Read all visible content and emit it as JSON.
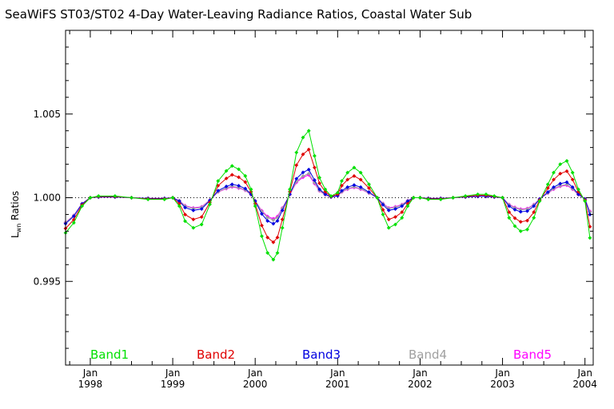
{
  "chart_data": {
    "type": "line",
    "title": "SeaWiFS ST03/ST02 4-Day Water-Leaving Radiance Ratios, Coastal Water Sub",
    "ylabel_main": "L",
    "ylabel_sub": "wn",
    "ylabel_rest": " Ratios",
    "xlabel": "",
    "x_unit": "year",
    "xlim": [
      1997.7,
      2004.1
    ],
    "ylim": [
      0.99,
      1.01
    ],
    "yticks": [
      {
        "value": 0.995,
        "label": "0.995"
      },
      {
        "value": 1.0,
        "label": "1.000"
      },
      {
        "value": 1.005,
        "label": "1.005"
      }
    ],
    "xticks": [
      {
        "value": 1998,
        "top": "Jan",
        "bottom": "1998"
      },
      {
        "value": 1999,
        "top": "Jan",
        "bottom": "1999"
      },
      {
        "value": 2000,
        "top": "Jan",
        "bottom": "2000"
      },
      {
        "value": 2001,
        "top": "Jan",
        "bottom": "2001"
      },
      {
        "value": 2002,
        "top": "Jan",
        "bottom": "2002"
      },
      {
        "value": 2003,
        "top": "Jan",
        "bottom": "2003"
      },
      {
        "value": 2004,
        "top": "Jan",
        "bottom": "2004"
      }
    ],
    "reference_line": {
      "y": 1.0,
      "style": "dotted"
    },
    "legend_placement": "bottom, inside plot",
    "series": [
      {
        "name": "Band1",
        "color": "#00e000",
        "amplitude": 1.0
      },
      {
        "name": "Band2",
        "color": "#e00000",
        "amplitude": 0.72
      },
      {
        "name": "Band3",
        "color": "#0000e0",
        "amplitude": 0.42
      },
      {
        "name": "Band4",
        "color": "#a0a0a0",
        "amplitude": 0.36
      },
      {
        "name": "Band5",
        "color": "#ff00ff",
        "amplitude": 0.34
      }
    ],
    "base_curve_x": [
      1997.7,
      1997.8,
      1997.9,
      1998.0,
      1998.1,
      1998.3,
      1998.5,
      1998.7,
      1998.9,
      1999.0,
      1999.08,
      1999.15,
      1999.25,
      1999.35,
      1999.45,
      1999.55,
      1999.65,
      1999.72,
      1999.8,
      1999.88,
      1999.95,
      2000.0,
      2000.08,
      2000.15,
      2000.22,
      2000.27,
      2000.33,
      2000.42,
      2000.5,
      2000.58,
      2000.65,
      2000.72,
      2000.78,
      2000.85,
      2000.92,
      2001.0,
      2001.05,
      2001.12,
      2001.2,
      2001.28,
      2001.38,
      2001.48,
      2001.55,
      2001.62,
      2001.7,
      2001.78,
      2001.85,
      2001.92,
      2002.0,
      2002.1,
      2002.25,
      2002.4,
      2002.55,
      2002.7,
      2002.8,
      2002.9,
      2003.0,
      2003.08,
      2003.15,
      2003.22,
      2003.3,
      2003.38,
      2003.45,
      2003.55,
      2003.62,
      2003.7,
      2003.78,
      2003.85,
      2003.92,
      2004.0,
      2004.06
    ],
    "band1_values": [
      0.9979,
      0.9985,
      0.9995,
      1.0,
      1.0001,
      1.0001,
      1.0,
      0.9999,
      0.9999,
      1.0,
      0.9995,
      0.9986,
      0.9982,
      0.9984,
      0.9996,
      1.001,
      1.0016,
      1.0019,
      1.0017,
      1.0013,
      1.0005,
      0.9995,
      0.9977,
      0.9967,
      0.9963,
      0.9967,
      0.9982,
      1.0005,
      1.0027,
      1.0036,
      1.004,
      1.0025,
      1.0012,
      1.0005,
      1.0001,
      1.0003,
      1.001,
      1.0015,
      1.0018,
      1.0015,
      1.0008,
      1.0,
      0.999,
      0.9982,
      0.9984,
      0.9988,
      0.9995,
      1.0,
      1.0,
      0.9999,
      0.9999,
      1.0,
      1.0001,
      1.0002,
      1.0002,
      1.0001,
      1.0,
      0.9988,
      0.9983,
      0.998,
      0.9981,
      0.9988,
      0.9998,
      1.0008,
      1.0015,
      1.002,
      1.0022,
      1.0015,
      1.0005,
      0.9998,
      0.9976
    ]
  }
}
